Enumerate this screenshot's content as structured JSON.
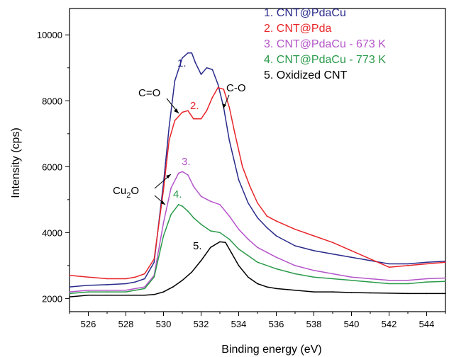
{
  "chart_data": {
    "type": "line",
    "xlabel": "Binding energy (eV)",
    "ylabel": "Intensity (cps)",
    "xlim": [
      525,
      545
    ],
    "ylim": [
      1600,
      10800
    ],
    "xticks": [
      526,
      528,
      530,
      532,
      534,
      536,
      538,
      540,
      542,
      544
    ],
    "yticks": [
      2000,
      4000,
      6000,
      8000,
      10000
    ],
    "legend_position": "top-right",
    "series": [
      {
        "name": "1. CNT@PdaCu",
        "color": "#2a2a8c",
        "x": [
          525,
          526,
          527,
          528,
          528.5,
          529,
          529.5,
          530,
          530.3,
          530.6,
          531,
          531.3,
          531.5,
          531.7,
          532,
          532.3,
          532.6,
          532.9,
          533.2,
          533.5,
          534,
          534.5,
          535,
          535.5,
          536,
          537,
          538,
          539,
          540,
          541,
          542,
          543,
          544,
          545
        ],
        "values": [
          2350,
          2400,
          2420,
          2450,
          2500,
          2600,
          3100,
          5500,
          7200,
          8600,
          9300,
          9450,
          9450,
          9150,
          8800,
          9000,
          8950,
          8500,
          7800,
          6800,
          5600,
          4900,
          4450,
          4150,
          3900,
          3600,
          3450,
          3350,
          3250,
          3150,
          3050,
          3050,
          3100,
          3130
        ]
      },
      {
        "name": "2. CNT@Pda",
        "color": "#e8252a",
        "x": [
          525,
          526,
          527,
          528,
          528.5,
          529,
          529.5,
          530,
          530.3,
          530.6,
          531,
          531.3,
          531.6,
          532,
          532.3,
          532.6,
          532.9,
          533.2,
          533.5,
          533.8,
          534.2,
          534.6,
          535,
          535.5,
          536,
          537,
          538,
          539,
          540,
          541,
          542,
          543,
          544,
          545
        ],
        "values": [
          2700,
          2650,
          2600,
          2600,
          2650,
          2750,
          3200,
          5300,
          6800,
          7400,
          7650,
          7700,
          7450,
          7450,
          7700,
          8100,
          8400,
          8350,
          7800,
          7000,
          6000,
          5400,
          4900,
          4500,
          4350,
          4100,
          3900,
          3700,
          3450,
          3200,
          2950,
          3000,
          3050,
          3100
        ]
      },
      {
        "name": "3. CNT@PdaCu - 673 K",
        "color": "#b455c9",
        "x": [
          525,
          526,
          527,
          528,
          528.5,
          529,
          529.5,
          530,
          530.4,
          530.8,
          531,
          531.3,
          531.6,
          532,
          532.5,
          533,
          533.5,
          534,
          534.5,
          535,
          536,
          537,
          538,
          539,
          540,
          541,
          542,
          543,
          544,
          545
        ],
        "values": [
          2200,
          2250,
          2250,
          2250,
          2300,
          2350,
          2700,
          4300,
          5350,
          5800,
          5850,
          5750,
          5400,
          5100,
          4950,
          4850,
          4500,
          4100,
          3800,
          3550,
          3250,
          3000,
          2850,
          2750,
          2650,
          2600,
          2550,
          2550,
          2600,
          2620
        ]
      },
      {
        "name": "4. CNT@PdaCu - 773 K",
        "color": "#2a9a4a",
        "x": [
          525,
          526,
          527,
          528,
          528.5,
          529,
          529.5,
          530,
          530.4,
          530.8,
          531,
          531.3,
          531.6,
          532,
          532.5,
          533,
          533.5,
          534,
          534.5,
          535,
          536,
          537,
          538,
          539,
          540,
          541,
          542,
          543,
          544,
          545
        ],
        "values": [
          2150,
          2200,
          2200,
          2200,
          2250,
          2300,
          2650,
          3900,
          4550,
          4850,
          4800,
          4650,
          4450,
          4250,
          4050,
          4000,
          3800,
          3500,
          3300,
          3100,
          2900,
          2750,
          2650,
          2600,
          2550,
          2500,
          2450,
          2450,
          2500,
          2520
        ]
      },
      {
        "name": "5. Oxidized CNT",
        "color": "#000000",
        "x": [
          525,
          526,
          527,
          528,
          529,
          529.5,
          530,
          530.5,
          531,
          531.5,
          532,
          532.5,
          533,
          533.3,
          533.6,
          534,
          534.5,
          535,
          535.5,
          536,
          537,
          538,
          539,
          540,
          541,
          542,
          543,
          544,
          545
        ],
        "values": [
          2050,
          2100,
          2100,
          2100,
          2100,
          2120,
          2200,
          2350,
          2550,
          2800,
          3150,
          3550,
          3720,
          3700,
          3400,
          3000,
          2650,
          2450,
          2350,
          2300,
          2250,
          2200,
          2200,
          2180,
          2170,
          2160,
          2150,
          2150,
          2150
        ]
      }
    ],
    "annotations": {
      "label_1": "1.",
      "label_2": "2.",
      "label_3": "3.",
      "label_4": "4.",
      "label_5": "5.",
      "c_eq_o": "C=O",
      "c_o": "C-O",
      "cu2o_main": "Cu",
      "cu2o_sub": "2",
      "cu2o_tail": "O"
    }
  }
}
